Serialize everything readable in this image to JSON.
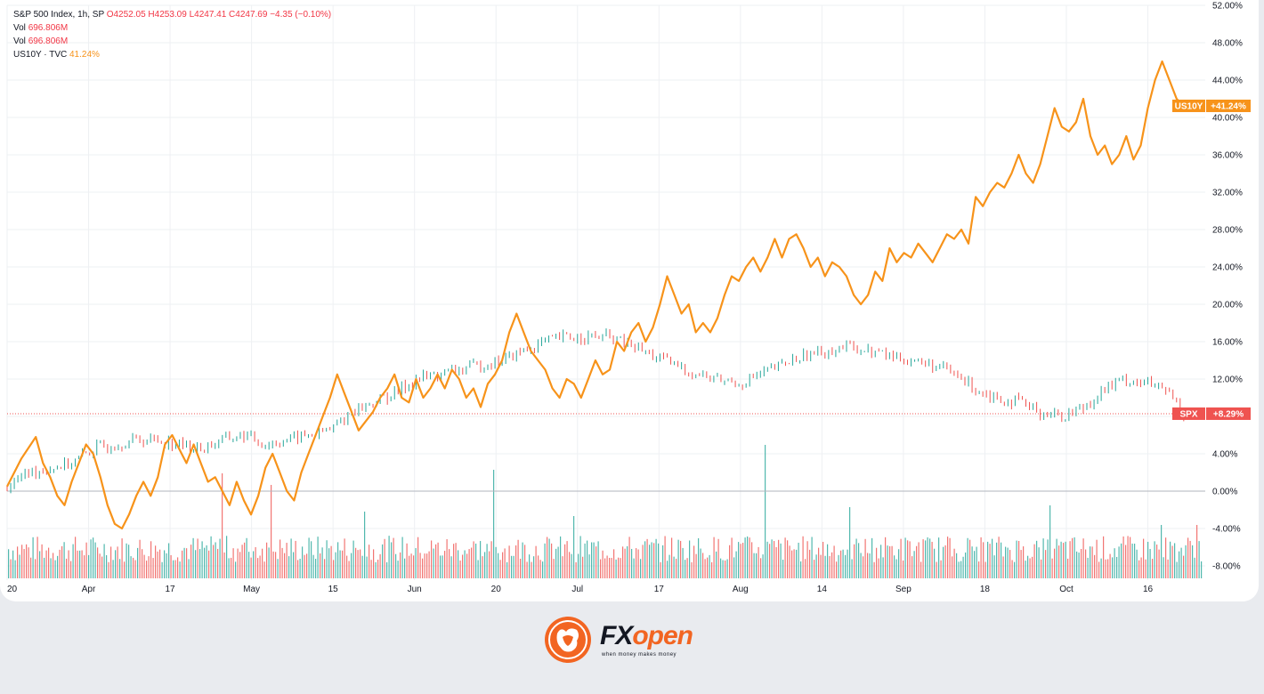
{
  "legend": {
    "line1_symbol": "S&P 500 Index, 1h, SP",
    "line1_ohlc": "O4252.05 H4253.09 L4247.41 C4247.69 −4.35 (−0.10%)",
    "vol1_label": "Vol",
    "vol1_value": "696.806M",
    "vol2_label": "Vol",
    "vol2_value": "696.806M",
    "us10y_label": "US10Y · TVC",
    "us10y_value": "41.24%"
  },
  "colors": {
    "spx_up": "#26a69a",
    "spx_down": "#ef5350",
    "us10y": "#f7931a",
    "grid": "#eef0f3",
    "baseline": "#b2b5be"
  },
  "chart_data": {
    "type": "line",
    "y_unit": "percent change",
    "ylim": [
      -10,
      52
    ],
    "y_ticks": [
      "52.00%",
      "48.00%",
      "44.00%",
      "40.00%",
      "36.00%",
      "32.00%",
      "28.00%",
      "24.00%",
      "20.00%",
      "16.00%",
      "12.00%",
      "8.00%",
      "4.00%",
      "0.00%",
      "-4.00%",
      "-8.00%"
    ],
    "x_ticks": [
      "20",
      "Apr",
      "17",
      "May",
      "15",
      "Jun",
      "20",
      "Jul",
      "17",
      "Aug",
      "14",
      "Sep",
      "18",
      "Oct",
      "16"
    ],
    "grid": true,
    "series": [
      {
        "name": "US10Y",
        "end_label": "US10Y",
        "end_value": "+41.24%",
        "points": [
          [
            0,
            0.5
          ],
          [
            2,
            3.5
          ],
          [
            4,
            5.8
          ],
          [
            5,
            3
          ],
          [
            6,
            1.5
          ],
          [
            7,
            -0.5
          ],
          [
            8,
            -1.5
          ],
          [
            9,
            1
          ],
          [
            10,
            3
          ],
          [
            11,
            5
          ],
          [
            12,
            4
          ],
          [
            13,
            1.5
          ],
          [
            14,
            -1.5
          ],
          [
            15,
            -3.5
          ],
          [
            16,
            -4
          ],
          [
            17,
            -2.5
          ],
          [
            18,
            -0.5
          ],
          [
            19,
            1
          ],
          [
            20,
            -0.5
          ],
          [
            21,
            1.5
          ],
          [
            22,
            5
          ],
          [
            23,
            6
          ],
          [
            24,
            4.5
          ],
          [
            25,
            3
          ],
          [
            26,
            5
          ],
          [
            27,
            3
          ],
          [
            28,
            1
          ],
          [
            29,
            1.5
          ],
          [
            30,
            0
          ],
          [
            31,
            -1.5
          ],
          [
            32,
            1
          ],
          [
            33,
            -1
          ],
          [
            34,
            -2.5
          ],
          [
            35,
            -0.5
          ],
          [
            36,
            2.5
          ],
          [
            37,
            4
          ],
          [
            38,
            2
          ],
          [
            39,
            0
          ],
          [
            40,
            -1
          ],
          [
            41,
            2
          ],
          [
            42,
            4
          ],
          [
            43,
            6
          ],
          [
            44,
            8
          ],
          [
            45,
            10
          ],
          [
            46,
            12.5
          ],
          [
            47,
            10.5
          ],
          [
            48,
            8.5
          ],
          [
            49,
            6.5
          ],
          [
            50,
            7.5
          ],
          [
            51,
            8.5
          ],
          [
            52,
            10
          ],
          [
            53,
            11
          ],
          [
            54,
            12.5
          ],
          [
            55,
            10
          ],
          [
            56,
            9.5
          ],
          [
            57,
            12
          ],
          [
            58,
            10
          ],
          [
            59,
            11
          ],
          [
            60,
            12.5
          ],
          [
            61,
            11
          ],
          [
            62,
            13
          ],
          [
            63,
            12
          ],
          [
            64,
            10
          ],
          [
            65,
            11
          ],
          [
            66,
            9
          ],
          [
            67,
            11.5
          ],
          [
            68,
            12.5
          ],
          [
            69,
            14
          ],
          [
            70,
            17
          ],
          [
            71,
            19
          ],
          [
            72,
            17
          ],
          [
            73,
            15
          ],
          [
            74,
            14
          ],
          [
            75,
            13
          ],
          [
            76,
            11
          ],
          [
            77,
            10
          ],
          [
            78,
            12
          ],
          [
            79,
            11.5
          ],
          [
            80,
            10
          ],
          [
            81,
            12
          ],
          [
            82,
            14
          ],
          [
            83,
            12.5
          ],
          [
            84,
            13
          ],
          [
            85,
            16
          ],
          [
            86,
            15
          ],
          [
            87,
            17
          ],
          [
            88,
            18
          ],
          [
            89,
            16
          ],
          [
            90,
            17.5
          ],
          [
            91,
            20
          ],
          [
            92,
            23
          ],
          [
            93,
            21
          ],
          [
            94,
            19
          ],
          [
            95,
            20
          ],
          [
            96,
            17
          ],
          [
            97,
            18
          ],
          [
            98,
            17
          ],
          [
            99,
            18.5
          ],
          [
            100,
            21
          ],
          [
            101,
            23
          ],
          [
            102,
            22.5
          ],
          [
            103,
            24
          ],
          [
            104,
            25
          ],
          [
            105,
            23.5
          ],
          [
            106,
            25
          ],
          [
            107,
            27
          ],
          [
            108,
            25
          ],
          [
            109,
            27
          ],
          [
            110,
            27.5
          ],
          [
            111,
            26
          ],
          [
            112,
            24
          ],
          [
            113,
            25
          ],
          [
            114,
            23
          ],
          [
            115,
            24.5
          ],
          [
            116,
            24
          ],
          [
            117,
            23
          ],
          [
            118,
            21
          ],
          [
            119,
            20
          ],
          [
            120,
            21
          ],
          [
            121,
            23.5
          ],
          [
            122,
            22.5
          ],
          [
            123,
            26
          ],
          [
            124,
            24.5
          ],
          [
            125,
            25.5
          ],
          [
            126,
            25
          ],
          [
            127,
            26.5
          ],
          [
            128,
            25.5
          ],
          [
            129,
            24.5
          ],
          [
            130,
            26
          ],
          [
            131,
            27.5
          ],
          [
            132,
            27
          ],
          [
            133,
            28
          ],
          [
            134,
            26.5
          ],
          [
            135,
            31.5
          ],
          [
            136,
            30.5
          ],
          [
            137,
            32
          ],
          [
            138,
            33
          ],
          [
            139,
            32.5
          ],
          [
            140,
            34
          ],
          [
            141,
            36
          ],
          [
            142,
            34
          ],
          [
            143,
            33
          ],
          [
            144,
            35
          ],
          [
            145,
            38
          ],
          [
            146,
            41
          ],
          [
            147,
            39
          ],
          [
            148,
            38.5
          ],
          [
            149,
            39.5
          ],
          [
            150,
            42
          ],
          [
            151,
            38
          ],
          [
            152,
            36
          ],
          [
            153,
            37
          ],
          [
            154,
            35
          ],
          [
            155,
            36
          ],
          [
            156,
            38
          ],
          [
            157,
            35.5
          ],
          [
            158,
            37
          ],
          [
            159,
            41
          ],
          [
            160,
            44
          ],
          [
            161,
            46
          ],
          [
            162,
            44
          ],
          [
            163,
            42
          ],
          [
            164,
            41.24
          ]
        ]
      },
      {
        "name": "SPX",
        "end_label": "SPX",
        "end_value": "+8.29%",
        "points": [
          [
            0,
            0.5
          ],
          [
            3,
            2
          ],
          [
            6,
            2.5
          ],
          [
            9,
            3
          ],
          [
            12,
            4.5
          ],
          [
            15,
            5
          ],
          [
            18,
            5.5
          ],
          [
            21,
            5.5
          ],
          [
            24,
            5
          ],
          [
            27,
            4.5
          ],
          [
            30,
            5.5
          ],
          [
            33,
            6
          ],
          [
            36,
            5
          ],
          [
            39,
            5.5
          ],
          [
            42,
            6
          ],
          [
            45,
            6.5
          ],
          [
            48,
            8.5
          ],
          [
            51,
            9.5
          ],
          [
            54,
            10.5
          ],
          [
            57,
            12
          ],
          [
            60,
            12.5
          ],
          [
            63,
            13
          ],
          [
            66,
            13.5
          ],
          [
            69,
            14
          ],
          [
            72,
            15
          ],
          [
            75,
            16
          ],
          [
            78,
            16.5
          ],
          [
            81,
            16.5
          ],
          [
            84,
            16.5
          ],
          [
            87,
            15.5
          ],
          [
            90,
            14.5
          ],
          [
            93,
            13.5
          ],
          [
            96,
            12.5
          ],
          [
            99,
            12
          ],
          [
            102,
            11.5
          ],
          [
            105,
            12.5
          ],
          [
            108,
            13.5
          ],
          [
            111,
            14.5
          ],
          [
            114,
            15
          ],
          [
            117,
            15.5
          ],
          [
            120,
            15
          ],
          [
            123,
            14.5
          ],
          [
            126,
            14
          ],
          [
            129,
            13.5
          ],
          [
            132,
            12.5
          ],
          [
            135,
            11
          ],
          [
            138,
            10
          ],
          [
            141,
            9.5
          ],
          [
            144,
            8.5
          ],
          [
            147,
            8
          ],
          [
            150,
            9
          ],
          [
            153,
            11
          ],
          [
            156,
            12
          ],
          [
            159,
            11.5
          ],
          [
            162,
            10.5
          ],
          [
            164,
            8.29
          ]
        ]
      }
    ],
    "volume": {
      "name": "Vol",
      "note": "hourly volume bars, mostly small with occasional spikes"
    }
  },
  "brand": {
    "name_part1": "FX",
    "name_part2": "open",
    "tagline": "when money makes money"
  }
}
